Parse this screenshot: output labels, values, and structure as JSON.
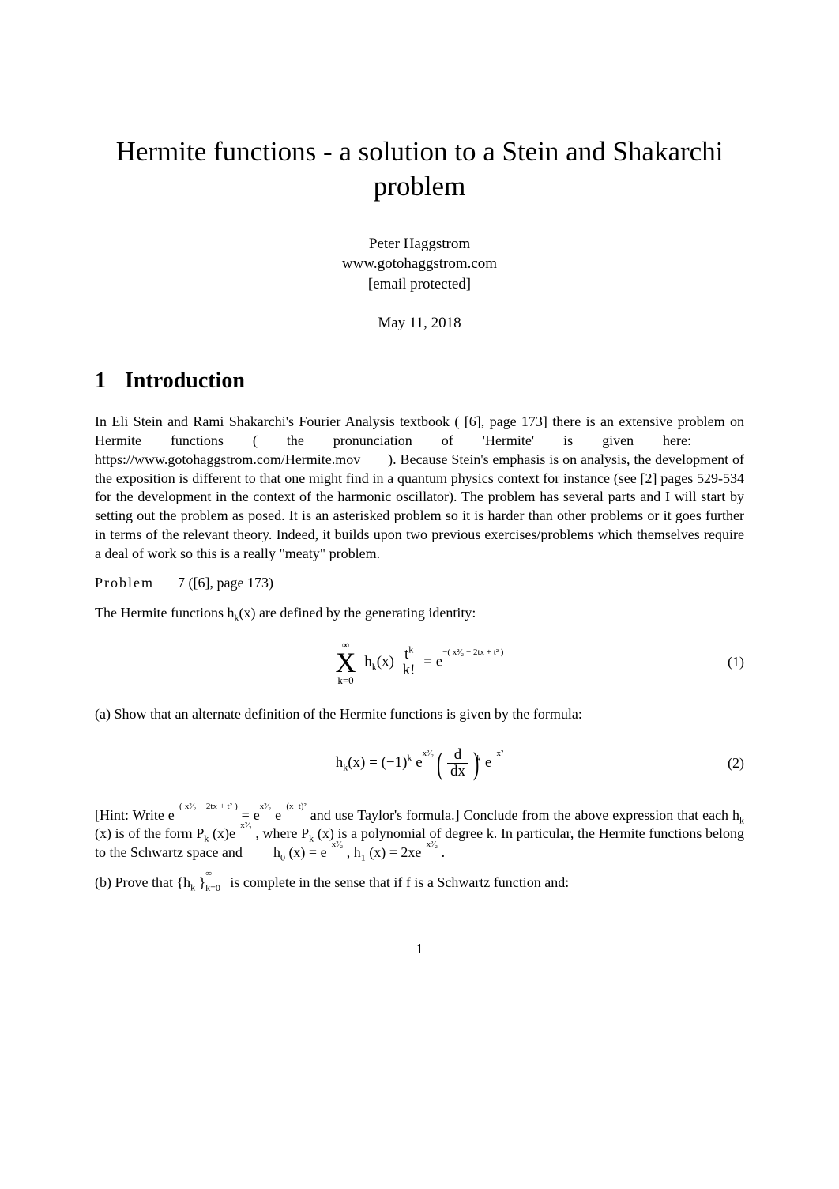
{
  "title": "Hermite functions - a solution to a Stein and Shakarchi problem",
  "author": {
    "name": "Peter Haggstrom",
    "site": "www.gotohaggstrom.com",
    "email": "[email protected]"
  },
  "date": "May 11, 2018",
  "section": {
    "num": "1",
    "title": "Introduction"
  },
  "intro": {
    "p1a": "In Eli Stein and Rami Shakarchi's Fourier Analysis textbook ( [6], page 173] there is an extensive problem on Hermite functions ( the pronunciation of 'Hermite' is given here: ",
    "url1": "https://www.gotohaggstrom.com/Hermite.mov",
    "p1b": " ). Because Stein's emphasis is on analysis, the development of the exposition is different to that one might find in a quantum physics context for instance (see [2] pages 529-534 for the development in the context of the harmonic oscillator). The problem has several parts and I will start by setting out the problem as posed. It is an asterisked problem so it is harder than other problems or it goes further in terms of the relevant theory. Indeed, it builds upon two previous exercises/problems which themselves require a deal of work so this is a really \"meaty\" problem."
  },
  "problem": {
    "label": "Problem",
    "ref": "7 ([6], page 173)",
    "lead": "The Hermite functions   h",
    "lead2": "(x) are defined by the generating identity:"
  },
  "eq1": {
    "sum_top": "∞",
    "sum_sym": "X",
    "sum_bot": "k=0",
    "hk": "h",
    "hk_sub": "k",
    "hk_x": "(x)",
    "frac_num": "t",
    "frac_num_sup": "k",
    "frac_den": "k!",
    "eq": " = e",
    "exp": "−( x²⁄₂ − 2tx + t² )",
    "num": "(1)"
  },
  "partA_intro": "(a) Show that an alternate definition of the Hermite functions is given by the formula:",
  "eq2": {
    "lhs": "h",
    "lhs_sub": "k",
    "lhs_x": "(x) = (−1)",
    "lhs_sup_k": "k",
    "e1": "e",
    "e1_exp": "x²⁄₂",
    "d_num": "d",
    "d_den": "dx",
    "d_sup": "k",
    "e2": "e",
    "e2_exp": "−x²",
    "num": "(2)"
  },
  "hint": {
    "t1": "[Hint: Write  e",
    "t1_exp": "−( x²⁄₂ − 2tx + t² )",
    "t2": " = e",
    "t2a_exp": "x²⁄₂",
    "t3": " e",
    "t3_exp": "−(x−t)²",
    "t4": " and use Taylor's formula.] Conclude from the above expression that each  h",
    "t4_sub": "k",
    "t5": "(x) is of the form  P",
    "t5_sub": "k",
    "t6": "(x)e",
    "t6_exp": "−x²⁄₂",
    "t7": ", where  P",
    "t7_sub": "k",
    "t8": "(x) is a polynomial of degree  k. In particular, the Hermite functions belong to the Schwartz space and ",
    "t9": "h",
    "t9_sub": "0",
    "t10": "(x) = e",
    "t10_exp": "−x²⁄₂",
    "t11": ", h",
    "t11_sub": "1",
    "t12": "(x) = 2xe",
    "t12_exp": "−x²⁄₂",
    "t13": "."
  },
  "partB": {
    "t1": "(b) Prove that   {h",
    "t1_sub": "k",
    "t2": "}",
    "t2_sup": "∞",
    "t2_sub": "k=0",
    "t3": "  is complete in the sense that if   f  is a Schwartz function and:"
  },
  "pagenum": "1",
  "colors": {
    "text": "#000000",
    "background": "#ffffff"
  }
}
